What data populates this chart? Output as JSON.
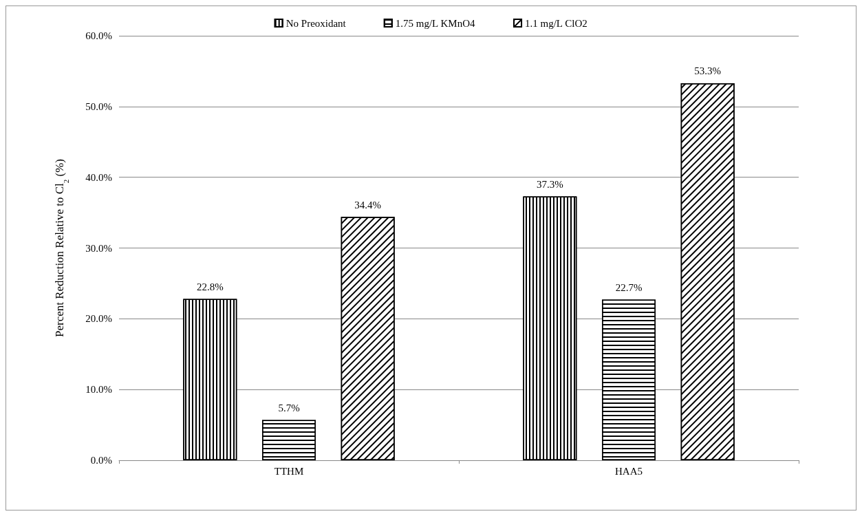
{
  "chart_data": {
    "type": "bar",
    "ylabel": "Percent Reduction Relative to Cl$_{2}$ (%)",
    "categories": [
      "TTHM",
      "HAA5"
    ],
    "series": [
      {
        "name": "No Preoxidant",
        "color": "#000000",
        "values": [
          22.8,
          37.3
        ],
        "value_labels": [
          "22.8%",
          "37.3%"
        ]
      },
      {
        "name": "1.75 mg/L KMnO4",
        "color": "#000000",
        "values": [
          5.7,
          22.7
        ],
        "value_labels": [
          "5.7%",
          "22.7%"
        ]
      },
      {
        "name": "1.1 mg/L ClO2",
        "color": "#000000",
        "values": [
          34.4,
          53.3
        ],
        "value_labels": [
          "34.4%",
          "53.3%"
        ]
      }
    ],
    "ylim": [
      0,
      60
    ],
    "yticks": [
      {
        "value": 0,
        "label": "0.0%"
      },
      {
        "value": 10,
        "label": "10.0%"
      },
      {
        "value": 20,
        "label": "20.0%"
      },
      {
        "value": 30,
        "label": "30.0%"
      },
      {
        "value": 40,
        "label": "40.0%"
      },
      {
        "value": 50,
        "label": "50.0%"
      },
      {
        "value": 60,
        "label": "60.0%"
      }
    ],
    "grid": "y",
    "legend": "top"
  }
}
